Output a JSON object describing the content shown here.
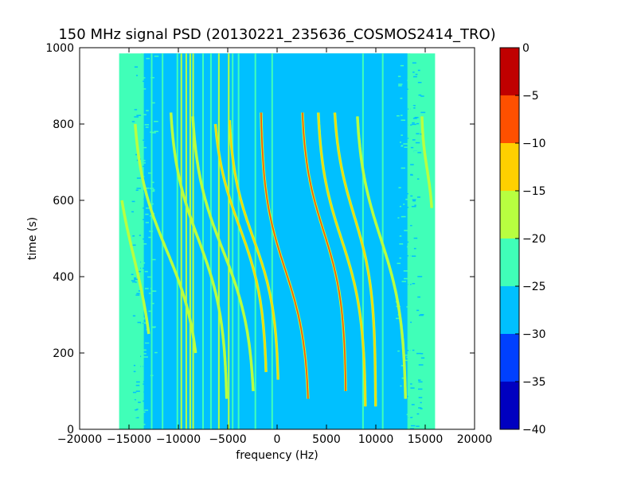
{
  "chart_data": {
    "type": "heatmap",
    "title": "150 MHz signal PSD (20130221_235636_COSMOS2414_TRO)",
    "xlabel": "frequency (Hz)",
    "ylabel": "time (s)",
    "xlim": [
      -20000,
      20000
    ],
    "ylim": [
      0,
      1000
    ],
    "x_ticks": [
      -20000,
      -15000,
      -10000,
      -5000,
      0,
      5000,
      10000,
      15000,
      20000
    ],
    "x_tick_labels": [
      "−20000",
      "−15000",
      "−10000",
      "−5000",
      "0",
      "5000",
      "10000",
      "15000",
      "20000"
    ],
    "y_ticks": [
      0,
      200,
      400,
      600,
      800,
      1000
    ],
    "y_tick_labels": [
      "0",
      "200",
      "400",
      "600",
      "800",
      "1000"
    ],
    "data_extent": {
      "freq": [
        -16000,
        16000
      ],
      "time": [
        0,
        985
      ]
    },
    "background_level": -27,
    "edge_level": -22,
    "colorbar": {
      "levels": [
        -40,
        -35,
        -30,
        -25,
        -20,
        -15,
        -10,
        -5,
        0
      ],
      "tick_labels": [
        "−40",
        "−35",
        "−30",
        "−25",
        "−20",
        "−15",
        "−10",
        "−5",
        "0"
      ],
      "colors": [
        "#0000c0",
        "#0040ff",
        "#00c0ff",
        "#40ffb8",
        "#b8ff40",
        "#ffd000",
        "#ff5000",
        "#c00000"
      ]
    },
    "vertical_lines": [
      {
        "freq": -15200,
        "level": -22
      },
      {
        "freq": -13700,
        "level": -22
      },
      {
        "freq": -12700,
        "level": -22
      },
      {
        "freq": -11600,
        "level": -22
      },
      {
        "freq": -10100,
        "level": -22
      },
      {
        "freq": -9700,
        "level": -17
      },
      {
        "freq": -9200,
        "level": -17
      },
      {
        "freq": -8800,
        "level": -17
      },
      {
        "freq": -8500,
        "level": -17
      },
      {
        "freq": -7500,
        "level": -22
      },
      {
        "freq": -6700,
        "level": -22
      },
      {
        "freq": -5900,
        "level": -17
      },
      {
        "freq": -4900,
        "level": -17
      },
      {
        "freq": -4500,
        "level": -22
      },
      {
        "freq": -3900,
        "level": -22
      },
      {
        "freq": -2200,
        "level": -22
      },
      {
        "freq": -500,
        "level": -22
      },
      {
        "freq": 8700,
        "level": -22
      },
      {
        "freq": 10700,
        "level": -22
      },
      {
        "freq": 13400,
        "level": -22
      }
    ],
    "doppler_tracks": [
      {
        "f_center": -14500,
        "t_center": 450,
        "amplitude": 2200,
        "t_width": 240,
        "t_range": [
          250,
          600
        ],
        "level": -17
      },
      {
        "f_center": -11200,
        "t_center": 470,
        "amplitude": 3500,
        "t_width": 220,
        "t_range": [
          200,
          800
        ],
        "level": -17
      },
      {
        "f_center": -8000,
        "t_center": 500,
        "amplitude": 3000,
        "t_width": 210,
        "t_range": [
          80,
          830
        ],
        "level": -17
      },
      {
        "f_center": -5500,
        "t_center": 470,
        "amplitude": 3300,
        "t_width": 220,
        "t_range": [
          100,
          820
        ],
        "level": -17
      },
      {
        "f_center": -3800,
        "t_center": 530,
        "amplitude": 2800,
        "t_width": 200,
        "t_range": [
          150,
          800
        ],
        "level": -12
      },
      {
        "f_center": -2400,
        "t_center": 500,
        "amplitude": 2600,
        "t_width": 190,
        "t_range": [
          130,
          810
        ],
        "level": -12
      },
      {
        "f_center": 800,
        "t_center": 420,
        "amplitude": 2500,
        "t_width": 200,
        "t_range": [
          80,
          830
        ],
        "level": -7
      },
      {
        "f_center": 4700,
        "t_center": 520,
        "amplitude": 2300,
        "t_width": 190,
        "t_range": [
          100,
          830
        ],
        "level": -7
      },
      {
        "f_center": 6500,
        "t_center": 500,
        "amplitude": 2500,
        "t_width": 200,
        "t_range": [
          60,
          830
        ],
        "level": -12
      },
      {
        "f_center": 7800,
        "t_center": 560,
        "amplitude": 2200,
        "t_width": 190,
        "t_range": [
          60,
          830
        ],
        "level": -12
      },
      {
        "f_center": 10500,
        "t_center": 500,
        "amplitude": 2600,
        "t_width": 210,
        "t_range": [
          80,
          820
        ],
        "level": -17
      },
      {
        "f_center": 15200,
        "t_center": 680,
        "amplitude": 600,
        "t_width": 100,
        "t_range": [
          580,
          820
        ],
        "level": -17
      }
    ]
  }
}
